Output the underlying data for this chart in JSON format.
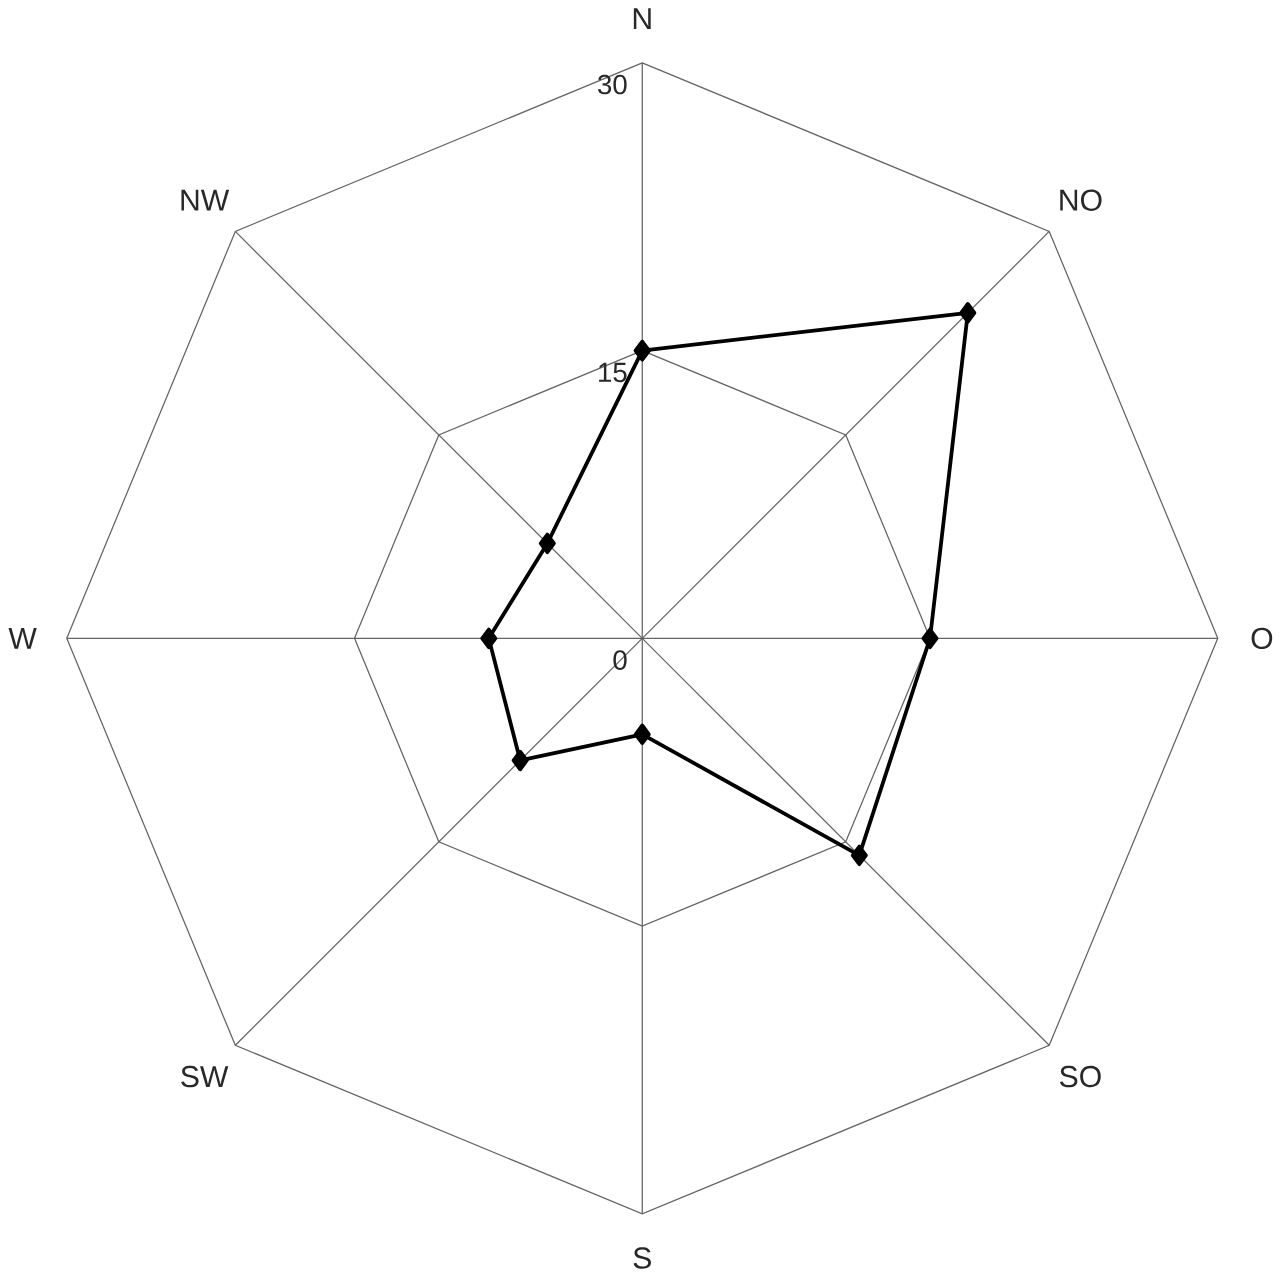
{
  "chart_data": {
    "type": "radar",
    "categories": [
      "N",
      "NO",
      "O",
      "SO",
      "S",
      "SW",
      "W",
      "NW"
    ],
    "series": [
      {
        "color": "#000000",
        "values": [
          15,
          24,
          15,
          16,
          5,
          9,
          8,
          7
        ]
      }
    ],
    "ylim": [
      0,
      30
    ],
    "yticks": [
      0,
      15,
      30
    ],
    "grid": true,
    "marker": "diamond",
    "line_style": "solid"
  }
}
